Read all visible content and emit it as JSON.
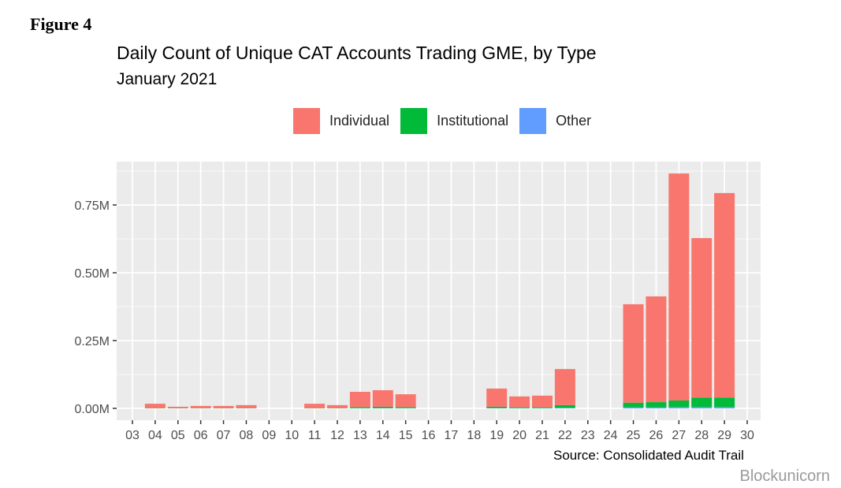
{
  "figure_label": "Figure 4",
  "chart_data": {
    "type": "bar",
    "stacked": true,
    "title": "Daily Count of Unique CAT Accounts Trading GME, by Type",
    "subtitle": "January 2021",
    "xlabel": "",
    "ylabel": "",
    "ylim": [
      0,
      0.9
    ],
    "y_ticks": [
      0,
      0.25,
      0.5,
      0.75
    ],
    "y_tick_labels": [
      "0.00M",
      "0.25M",
      "0.50M",
      "0.75M"
    ],
    "categories": [
      "03",
      "04",
      "05",
      "06",
      "07",
      "08",
      "09",
      "10",
      "11",
      "12",
      "13",
      "14",
      "15",
      "16",
      "17",
      "18",
      "19",
      "20",
      "21",
      "22",
      "23",
      "24",
      "25",
      "26",
      "27",
      "28",
      "29",
      "30"
    ],
    "legend_position": "top",
    "series": [
      {
        "name": "Other",
        "color": "#619CFF",
        "values": [
          0,
          0,
          0,
          0,
          0,
          0,
          0,
          0,
          0,
          0,
          0.001,
          0.001,
          0.001,
          0,
          0,
          0,
          0.001,
          0.001,
          0.001,
          0.002,
          0,
          0,
          0.004,
          0.004,
          0.005,
          0.005,
          0.005,
          0
        ]
      },
      {
        "name": "Institutional",
        "color": "#00BA38",
        "values": [
          0,
          0.001,
          0.001,
          0.001,
          0.001,
          0.001,
          0,
          0,
          0.001,
          0.001,
          0.004,
          0.005,
          0.004,
          0,
          0,
          0,
          0.005,
          0.003,
          0.003,
          0.01,
          0,
          0,
          0.017,
          0.019,
          0.024,
          0.035,
          0.035,
          0
        ]
      },
      {
        "name": "Individual",
        "color": "#F8766D",
        "values": [
          0,
          0.016,
          0.005,
          0.008,
          0.008,
          0.011,
          0,
          0,
          0.016,
          0.011,
          0.056,
          0.061,
          0.047,
          0,
          0,
          0,
          0.067,
          0.04,
          0.043,
          0.133,
          0,
          0,
          0.363,
          0.39,
          0.837,
          0.588,
          0.754,
          0
        ]
      }
    ],
    "legend_order": [
      "Individual",
      "Institutional",
      "Other"
    ],
    "source": "Source: Consolidated Audit Trail"
  },
  "watermark": "Blockunicorn"
}
